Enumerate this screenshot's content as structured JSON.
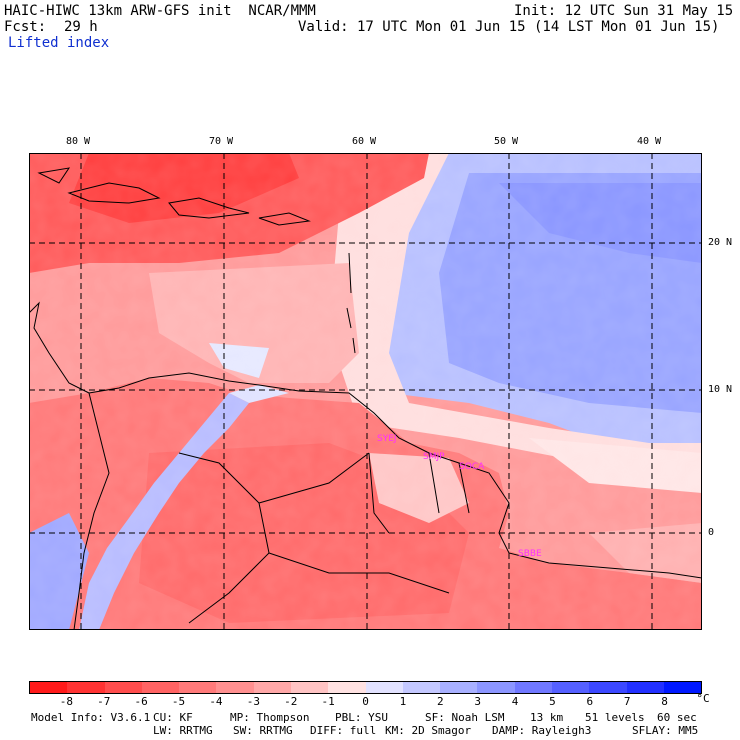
{
  "header": {
    "title_left": "HAIC-HIWC 13km ARW-GFS init  NCAR/MMM",
    "init": "Init: 12 UTC Sun 31 May 15",
    "fcst_label": "Fcst:",
    "fcst_value": "29 h",
    "valid": "Valid: 17 UTC Mon 01 Jun 15 (14 LST Mon 01 Jun 15)",
    "field": "Lifted index"
  },
  "axes": {
    "lon_labels": [
      "80 W",
      "70 W",
      "60 W",
      "50 W",
      "40 W"
    ],
    "lat_labels": [
      "20 N",
      "10 N",
      "0"
    ]
  },
  "stations": [
    {
      "id": "stn-1",
      "label": "SYEJ"
    },
    {
      "id": "stn-2",
      "label": "SMJP"
    },
    {
      "id": "stn-3",
      "label": "SOCA"
    },
    {
      "id": "stn-4",
      "label": "SBBE"
    }
  ],
  "colorbar": {
    "unit": "°C",
    "labels": [
      "-8",
      "-7",
      "-6",
      "-5",
      "-4",
      "-3",
      "-2",
      "-1",
      "0",
      "1",
      "2",
      "3",
      "4",
      "5",
      "6",
      "7",
      "8"
    ],
    "colors": [
      "#ff1a1a",
      "#ff3333",
      "#ff4d4d",
      "#ff6363",
      "#ff7a7a",
      "#ff9090",
      "#ffa8a8",
      "#ffc4c4",
      "#ffe2e2",
      "#e2e2ff",
      "#c4c8ff",
      "#a8b0ff",
      "#8c96ff",
      "#7078ff",
      "#5560ff",
      "#3c48ff",
      "#2230ff",
      "#0018ff"
    ]
  },
  "footer": {
    "line1": [
      "Model Info: V3.6.1",
      "CU: KF",
      "MP: Thompson",
      "PBL: YSU",
      "SF: Noah LSM",
      "13 km",
      "51 levels",
      "60 sec"
    ],
    "line2": [
      "LW: RRTMG",
      "SW: RRTMG",
      "DIFF: full",
      "KM: 2D Smagor",
      "DAMP: Rayleigh3",
      "SFLAY: MM5"
    ]
  }
}
